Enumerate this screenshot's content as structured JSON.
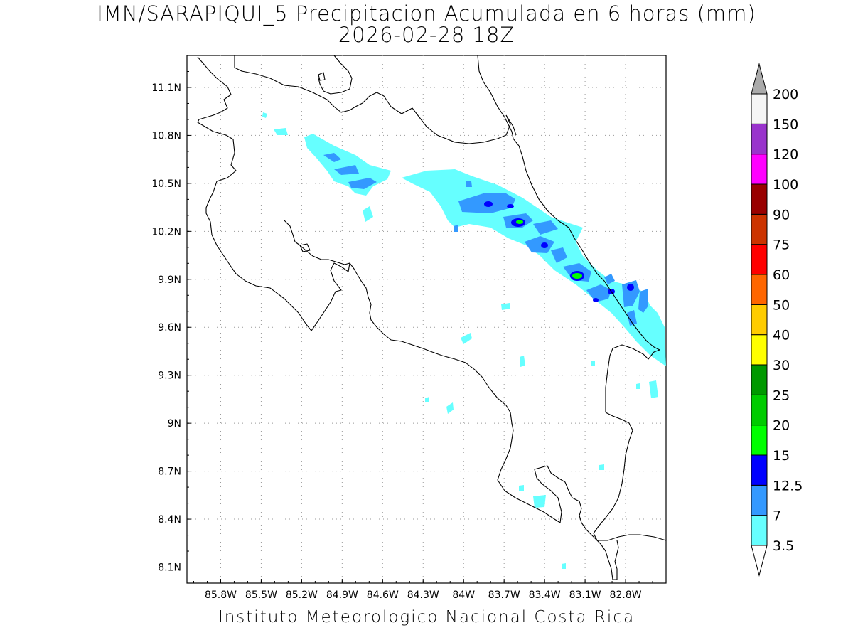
{
  "title": {
    "line1": "IMN/SARAPIQUI_5 Precipitacion Acumulada en 6 horas (mm)",
    "line2": "2026-02-28 18Z"
  },
  "credit": "Instituto Meteorologico Nacional Costa Rica",
  "map": {
    "lon_range": [
      -86.05,
      -82.5
    ],
    "lat_range": [
      8.0,
      11.3
    ],
    "lon_ticks": [
      "85.8W",
      "85.5W",
      "85.2W",
      "84.9W",
      "84.6W",
      "84.3W",
      "84W",
      "83.7W",
      "83.4W",
      "83.1W",
      "82.8W"
    ],
    "lat_ticks": [
      "11.1N",
      "10.8N",
      "10.5N",
      "10.2N",
      "9.9N",
      "9.6N",
      "9.3N",
      "9N",
      "8.7N",
      "8.4N",
      "8.1N"
    ],
    "grid": "dotted"
  },
  "colorbar": {
    "labels": [
      "3.5",
      "7",
      "12.5",
      "15",
      "20",
      "25",
      "30",
      "40",
      "50",
      "60",
      "75",
      "90",
      "100",
      "120",
      "150",
      "200"
    ],
    "colors": [
      "#66ffff",
      "#3399ff",
      "#0000ff",
      "#00ff00",
      "#00cc00",
      "#009900",
      "#ffff00",
      "#ffcc00",
      "#ff6600",
      "#ff0000",
      "#cc3300",
      "#990000",
      "#ff00ff",
      "#9933cc",
      "#f5f5f5",
      "#aaaaaa"
    ]
  }
}
